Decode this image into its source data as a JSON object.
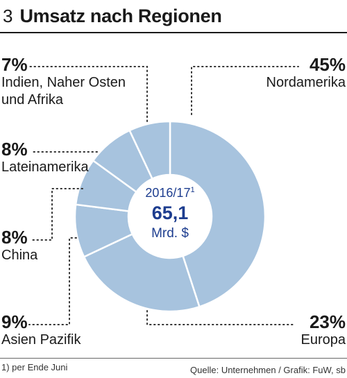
{
  "header": {
    "figure_number": "3",
    "title": "Umsatz nach Regionen"
  },
  "center": {
    "year": "2016/17",
    "year_footnote": "1",
    "value": "65,1",
    "unit": "Mrd. $"
  },
  "footer": {
    "footnote": "1) per Ende Juni",
    "source": "Quelle: Unternehmen / Grafik: FuW, sb"
  },
  "colors": {
    "slice_fill": "#a7c3de",
    "slice_stroke": "#ffffff",
    "center_text": "#1d3d8f"
  },
  "chart_data": {
    "type": "pie",
    "title": "Umsatz nach Regionen",
    "total": 65.1,
    "total_unit": "Mrd. $",
    "slices": [
      {
        "label": "Nordamerika",
        "value": 45,
        "display": "45%"
      },
      {
        "label": "Europa",
        "value": 23,
        "display": "23%"
      },
      {
        "label": "Asien Pazifik",
        "value": 9,
        "display": "9%"
      },
      {
        "label": "China",
        "value": 8,
        "display": "8%"
      },
      {
        "label": "Lateinamerika",
        "value": 8,
        "display": "8%"
      },
      {
        "label": "Indien, Naher Osten und Afrika",
        "value": 7,
        "display": "7%"
      }
    ]
  },
  "labels": {
    "nordamerika": {
      "pct": "45%",
      "name": "Nordamerika"
    },
    "europa": {
      "pct": "23%",
      "name": "Europa"
    },
    "asien": {
      "pct": "9%",
      "name": "Asien Pazifik"
    },
    "china": {
      "pct": "8%",
      "name": "China"
    },
    "latein": {
      "pct": "8%",
      "name": "Lateinamerika"
    },
    "indien": {
      "pct": "7%",
      "name_line1": "Indien, Naher Osten",
      "name_line2": "und Afrika"
    }
  }
}
